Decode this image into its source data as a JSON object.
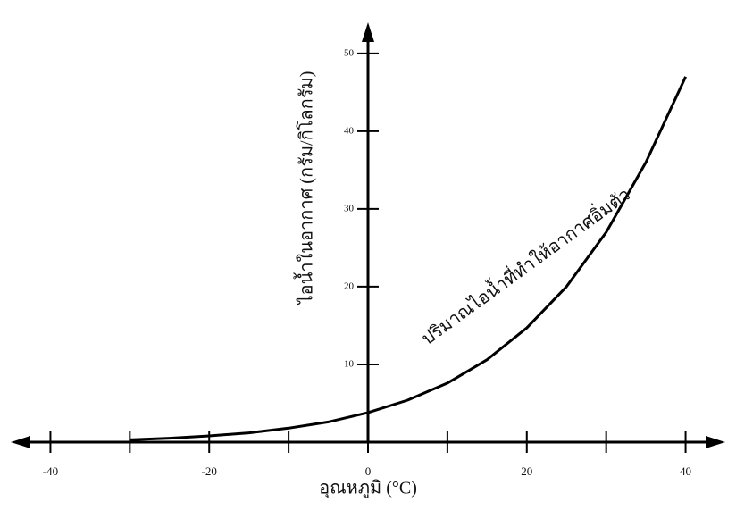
{
  "chart_data": {
    "type": "line",
    "x_label": "อุณหภูมิ (°C)",
    "y_label": "ไอน้ำในอากาศ (กรัม/กิโลกรัม)",
    "annotation": "ปริมาณไอน้ำที่ทำให้อากาศอิ่มตัว",
    "x": [
      -30,
      -25,
      -20,
      -15,
      -10,
      -5,
      0,
      5,
      10,
      15,
      20,
      25,
      30,
      35,
      40
    ],
    "values": [
      0.3,
      0.5,
      0.8,
      1.2,
      1.8,
      2.6,
      3.8,
      5.4,
      7.6,
      10.6,
      14.7,
      20,
      27,
      36,
      47
    ],
    "color": "#000000",
    "xlim": [
      -45,
      45
    ],
    "ylim": [
      0,
      54
    ],
    "xticks": [
      -40,
      -20,
      0,
      20,
      40
    ],
    "xminor_ticks": [
      -30,
      -10,
      10,
      30
    ],
    "yticks": [
      10,
      20,
      30,
      40,
      50
    ],
    "grid": false
  }
}
